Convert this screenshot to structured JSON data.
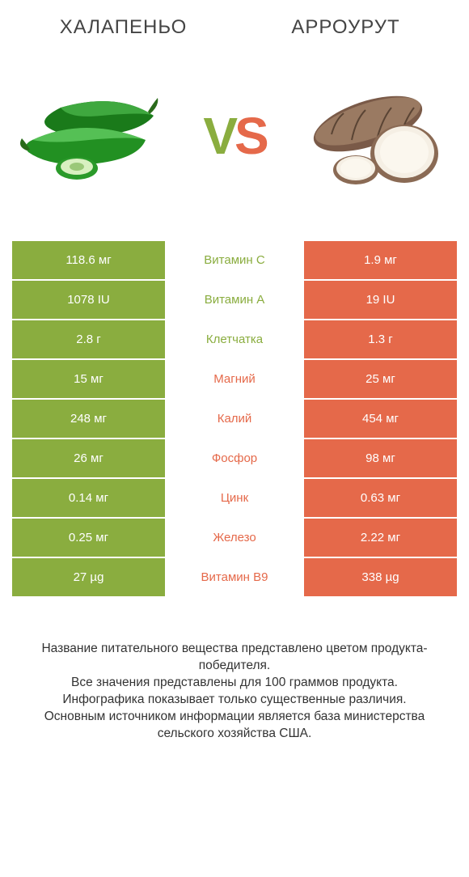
{
  "colors": {
    "left": "#8aad3f",
    "right": "#e5694a",
    "text_dark": "#333333"
  },
  "header": {
    "left_title": "Халапеньо",
    "right_title": "Арроурут"
  },
  "vs": {
    "v": "V",
    "s": "S"
  },
  "rows": [
    {
      "left": "118.6 мг",
      "label": "Витамин C",
      "right": "1.9 мг",
      "winner": "left"
    },
    {
      "left": "1078 IU",
      "label": "Витамин A",
      "right": "19 IU",
      "winner": "left"
    },
    {
      "left": "2.8 г",
      "label": "Клетчатка",
      "right": "1.3 г",
      "winner": "left"
    },
    {
      "left": "15 мг",
      "label": "Магний",
      "right": "25 мг",
      "winner": "right"
    },
    {
      "left": "248 мг",
      "label": "Калий",
      "right": "454 мг",
      "winner": "right"
    },
    {
      "left": "26 мг",
      "label": "Фосфор",
      "right": "98 мг",
      "winner": "right"
    },
    {
      "left": "0.14 мг",
      "label": "Цинк",
      "right": "0.63 мг",
      "winner": "right"
    },
    {
      "left": "0.25 мг",
      "label": "Железо",
      "right": "2.22 мг",
      "winner": "right"
    },
    {
      "left": "27 µg",
      "label": "Витамин B9",
      "right": "338 µg",
      "winner": "right"
    }
  ],
  "footer": {
    "l1": "Название питательного вещества представлено цветом продукта-победителя.",
    "l2": "Все значения представлены для 100 граммов продукта.",
    "l3": "Инфографика показывает только существенные различия.",
    "l4": "Основным источником информации является база министерства сельского хозяйства США."
  }
}
